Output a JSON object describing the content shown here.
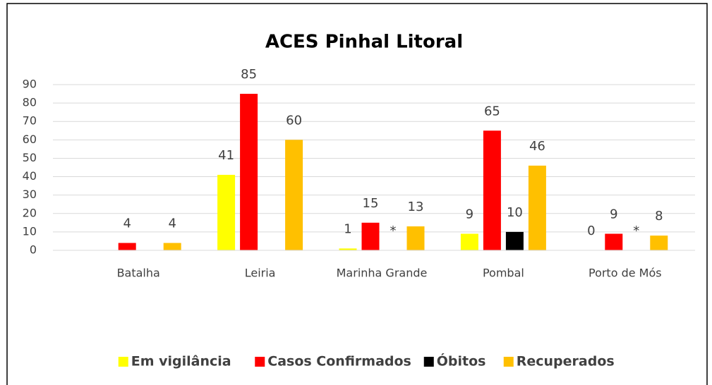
{
  "chart_data": {
    "type": "bar",
    "title": "ACES Pinhal Litoral",
    "categories": [
      "Batalha",
      "Leiria",
      "Marinha Grande",
      "Pombal",
      "Porto de Mós"
    ],
    "series": [
      {
        "name": "Em vigilância",
        "color": "#ffff00",
        "values": [
          null,
          41,
          1,
          9,
          0
        ]
      },
      {
        "name": "Casos Confirmados",
        "color": "#ff0000",
        "values": [
          4,
          85,
          15,
          65,
          9
        ]
      },
      {
        "name": "Óbitos",
        "color": "#000000",
        "values": [
          null,
          null,
          null,
          10,
          null
        ],
        "value_labels": [
          null,
          null,
          "*",
          null,
          "*"
        ]
      },
      {
        "name": "Recuperados",
        "color": "#ffc000",
        "values": [
          4,
          60,
          13,
          46,
          8
        ]
      }
    ],
    "ylim": [
      0,
      90
    ],
    "yticks": [
      0,
      10,
      20,
      30,
      40,
      50,
      60,
      70,
      80,
      90
    ],
    "grid": true,
    "legend": "bottom"
  }
}
